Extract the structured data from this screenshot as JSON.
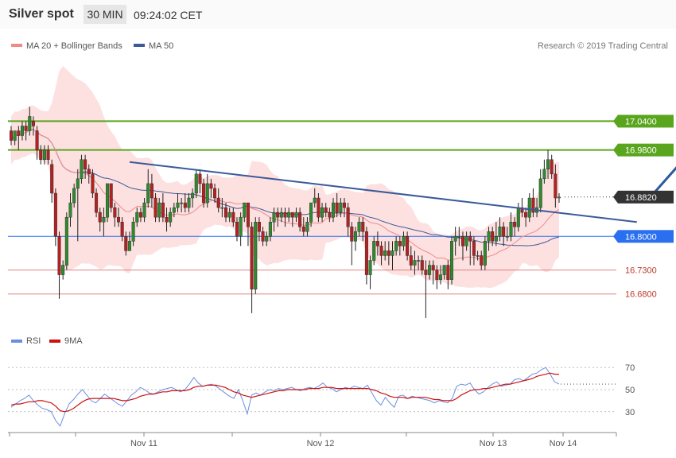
{
  "header": {
    "title": "Silver spot",
    "timeframe": "30 MIN",
    "time": "09:24:02 CET"
  },
  "price_legend": {
    "ma_bb_label": "MA 20 + Bollinger Bands",
    "ma50_label": "MA 50",
    "copyright": "Research © 2019 Trading Central",
    "colors": {
      "ma_bb": "#f08a8a",
      "ma50": "#3a5a9a",
      "band_fill": "#fde0e0",
      "green": "#5aa51e",
      "blue": "#2a6ff0",
      "dark": "#333333",
      "red": "#c0392b"
    }
  },
  "rsi_legend": {
    "rsi_label": "RSI",
    "ma9_label": "9MA",
    "colors": {
      "rsi": "#6b8ee0",
      "ma9": "#cc1111"
    }
  },
  "chart_data": [
    {
      "type": "candlestick",
      "title": "Silver spot",
      "x_ticks": [
        "Nov 11",
        "Nov 12",
        "Nov 13",
        "Nov 14"
      ],
      "ylim": [
        16.61,
        17.16
      ],
      "levels": [
        {
          "label": "17.0400",
          "value": 17.04,
          "style": "resistance"
        },
        {
          "label": "16.9800",
          "value": 16.98,
          "style": "resistance"
        },
        {
          "label": "16.8820",
          "value": 16.882,
          "style": "last-price"
        },
        {
          "label": "16.8000",
          "value": 16.8,
          "style": "pivot"
        },
        {
          "label": "16.7300",
          "value": 16.73,
          "style": "support"
        },
        {
          "label": "16.6800",
          "value": 16.68,
          "style": "support"
        }
      ],
      "trendline": {
        "from": [
          32,
          16.955
        ],
        "to": [
          169,
          16.83
        ]
      },
      "arrow": {
        "from": [
          173,
          16.885
        ],
        "to": [
          190,
          17.035
        ]
      },
      "candles": [
        [
          17.02,
          17.0,
          17.03,
          16.99
        ],
        [
          17.0,
          17.02,
          17.02,
          16.99
        ],
        [
          17.02,
          17.01,
          17.03,
          16.98
        ],
        [
          17.01,
          17.03,
          17.04,
          17.0
        ],
        [
          17.03,
          17.02,
          17.04,
          17.0
        ],
        [
          17.02,
          17.05,
          17.07,
          17.01
        ],
        [
          17.04,
          17.03,
          17.05,
          17.01
        ],
        [
          17.02,
          16.98,
          17.03,
          16.96
        ],
        [
          16.98,
          16.96,
          16.99,
          16.95
        ],
        [
          16.96,
          16.98,
          16.99,
          16.95
        ],
        [
          16.98,
          16.96,
          16.99,
          16.95
        ],
        [
          16.95,
          16.89,
          16.96,
          16.87
        ],
        [
          16.89,
          16.8,
          16.9,
          16.78
        ],
        [
          16.8,
          16.72,
          16.81,
          16.67
        ],
        [
          16.72,
          16.74,
          16.75,
          16.71
        ],
        [
          16.74,
          16.84,
          16.85,
          16.73
        ],
        [
          16.84,
          16.87,
          16.89,
          16.82
        ],
        [
          16.87,
          16.9,
          16.91,
          16.86
        ],
        [
          16.9,
          16.92,
          16.94,
          16.79
        ],
        [
          16.92,
          16.96,
          16.97,
          16.91
        ],
        [
          16.96,
          16.94,
          16.97,
          16.92
        ],
        [
          16.94,
          16.93,
          16.95,
          16.91
        ],
        [
          16.93,
          16.89,
          16.94,
          16.88
        ],
        [
          16.89,
          16.85,
          16.9,
          16.84
        ],
        [
          16.85,
          16.83,
          16.86,
          16.81
        ],
        [
          16.83,
          16.84,
          16.86,
          16.8
        ],
        [
          16.84,
          16.91,
          16.91,
          16.83
        ],
        [
          16.91,
          16.86,
          16.91,
          16.85
        ],
        [
          16.86,
          16.84,
          16.87,
          16.82
        ],
        [
          16.84,
          16.83,
          16.86,
          16.82
        ],
        [
          16.83,
          16.8,
          16.84,
          16.79
        ],
        [
          16.8,
          16.77,
          16.81,
          16.76
        ],
        [
          16.77,
          16.79,
          16.81,
          16.77
        ],
        [
          16.79,
          16.83,
          16.84,
          16.78
        ],
        [
          16.83,
          16.85,
          16.86,
          16.82
        ],
        [
          16.85,
          16.84,
          16.86,
          16.83
        ],
        [
          16.84,
          16.87,
          16.88,
          16.83
        ],
        [
          16.87,
          16.91,
          16.94,
          16.86
        ],
        [
          16.91,
          16.88,
          16.93,
          16.86
        ],
        [
          16.88,
          16.84,
          16.89,
          16.83
        ],
        [
          16.84,
          16.87,
          16.88,
          16.83
        ],
        [
          16.87,
          16.84,
          16.89,
          16.83
        ],
        [
          16.84,
          16.83,
          16.86,
          16.81
        ],
        [
          16.83,
          16.85,
          16.86,
          16.82
        ],
        [
          16.85,
          16.86,
          16.87,
          16.84
        ],
        [
          16.86,
          16.87,
          16.89,
          16.85
        ],
        [
          16.87,
          16.87,
          16.88,
          16.85
        ],
        [
          16.87,
          16.86,
          16.89,
          16.85
        ],
        [
          16.86,
          16.88,
          16.89,
          16.85
        ],
        [
          16.88,
          16.89,
          16.9,
          16.86
        ],
        [
          16.89,
          16.93,
          16.94,
          16.88
        ],
        [
          16.93,
          16.91,
          16.94,
          16.89
        ],
        [
          16.91,
          16.87,
          16.92,
          16.86
        ],
        [
          16.87,
          16.91,
          16.93,
          16.86
        ],
        [
          16.91,
          16.9,
          16.92,
          16.88
        ],
        [
          16.9,
          16.88,
          16.91,
          16.87
        ],
        [
          16.88,
          16.86,
          16.9,
          16.85
        ],
        [
          16.86,
          16.86,
          16.88,
          16.84
        ],
        [
          16.86,
          16.84,
          16.87,
          16.83
        ],
        [
          16.84,
          16.85,
          16.86,
          16.83
        ],
        [
          16.85,
          16.83,
          16.86,
          16.82
        ],
        [
          16.83,
          16.8,
          16.84,
          16.79
        ],
        [
          16.8,
          16.84,
          16.85,
          16.78
        ],
        [
          16.84,
          16.87,
          16.87,
          16.83
        ],
        [
          16.87,
          16.82,
          16.87,
          16.78
        ],
        [
          16.82,
          16.69,
          16.83,
          16.64
        ],
        [
          16.69,
          16.83,
          16.84,
          16.68
        ],
        [
          16.83,
          16.81,
          16.84,
          16.79
        ],
        [
          16.81,
          16.79,
          16.82,
          16.78
        ],
        [
          16.79,
          16.8,
          16.81,
          16.78
        ],
        [
          16.8,
          16.83,
          16.84,
          16.79
        ],
        [
          16.83,
          16.85,
          16.86,
          16.81
        ],
        [
          16.85,
          16.84,
          16.86,
          16.82
        ],
        [
          16.84,
          16.85,
          16.86,
          16.83
        ],
        [
          16.85,
          16.84,
          16.86,
          16.82
        ],
        [
          16.84,
          16.85,
          16.86,
          16.83
        ],
        [
          16.85,
          16.84,
          16.85,
          16.82
        ],
        [
          16.84,
          16.85,
          16.86,
          16.83
        ],
        [
          16.85,
          16.82,
          16.86,
          16.81
        ],
        [
          16.82,
          16.81,
          16.84,
          16.8
        ],
        [
          16.81,
          16.83,
          16.84,
          16.8
        ],
        [
          16.83,
          16.87,
          16.87,
          16.82
        ],
        [
          16.87,
          16.88,
          16.9,
          16.86
        ],
        [
          16.88,
          16.84,
          16.89,
          16.83
        ],
        [
          16.84,
          16.86,
          16.87,
          16.83
        ],
        [
          16.86,
          16.85,
          16.87,
          16.84
        ],
        [
          16.85,
          16.84,
          16.86,
          16.83
        ],
        [
          16.84,
          16.87,
          16.88,
          16.83
        ],
        [
          16.87,
          16.85,
          16.89,
          16.84
        ],
        [
          16.85,
          16.87,
          16.88,
          16.84
        ],
        [
          16.87,
          16.86,
          16.88,
          16.84
        ],
        [
          16.86,
          16.82,
          16.87,
          16.8
        ],
        [
          16.82,
          16.79,
          16.83,
          16.74
        ],
        [
          16.79,
          16.81,
          16.82,
          16.77
        ],
        [
          16.81,
          16.83,
          16.84,
          16.8
        ],
        [
          16.83,
          16.81,
          16.84,
          16.79
        ],
        [
          16.81,
          16.72,
          16.82,
          16.7
        ],
        [
          16.72,
          16.75,
          16.76,
          16.69
        ],
        [
          16.75,
          16.79,
          16.8,
          16.74
        ],
        [
          16.79,
          16.78,
          16.81,
          16.76
        ],
        [
          16.78,
          16.76,
          16.79,
          16.74
        ],
        [
          16.76,
          16.77,
          16.79,
          16.75
        ],
        [
          16.77,
          16.76,
          16.79,
          16.74
        ],
        [
          16.76,
          16.77,
          16.79,
          16.73
        ],
        [
          16.77,
          16.79,
          16.8,
          16.76
        ],
        [
          16.79,
          16.78,
          16.8,
          16.76
        ],
        [
          16.78,
          16.8,
          16.81,
          16.77
        ],
        [
          16.8,
          16.76,
          16.81,
          16.75
        ],
        [
          16.76,
          16.74,
          16.78,
          16.73
        ],
        [
          16.74,
          16.75,
          16.77,
          16.72
        ],
        [
          16.75,
          16.75,
          16.76,
          16.73
        ],
        [
          16.75,
          16.73,
          16.76,
          16.72
        ],
        [
          16.73,
          16.72,
          16.75,
          16.63
        ],
        [
          16.72,
          16.74,
          16.75,
          16.71
        ],
        [
          16.74,
          16.73,
          16.75,
          16.7
        ],
        [
          16.73,
          16.71,
          16.74,
          16.69
        ],
        [
          16.71,
          16.72,
          16.74,
          16.7
        ],
        [
          16.72,
          16.74,
          16.74,
          16.71
        ],
        [
          16.74,
          16.71,
          16.75,
          16.69
        ],
        [
          16.71,
          16.79,
          16.8,
          16.7
        ],
        [
          16.79,
          16.8,
          16.82,
          16.76
        ],
        [
          16.8,
          16.8,
          16.82,
          16.78
        ],
        [
          16.8,
          16.78,
          16.81,
          16.75
        ],
        [
          16.78,
          16.8,
          16.81,
          16.77
        ],
        [
          16.8,
          16.79,
          16.81,
          16.74
        ],
        [
          16.79,
          16.76,
          16.8,
          16.74
        ],
        [
          16.76,
          16.76,
          16.77,
          16.75
        ],
        [
          16.76,
          16.74,
          16.77,
          16.73
        ],
        [
          16.74,
          16.79,
          16.8,
          16.73
        ],
        [
          16.79,
          16.81,
          16.82,
          16.77
        ],
        [
          16.81,
          16.79,
          16.82,
          16.78
        ],
        [
          16.79,
          16.8,
          16.83,
          16.78
        ],
        [
          16.8,
          16.82,
          16.84,
          16.79
        ],
        [
          16.82,
          16.8,
          16.83,
          16.78
        ],
        [
          16.8,
          16.8,
          16.82,
          16.79
        ],
        [
          16.8,
          16.83,
          16.85,
          16.79
        ],
        [
          16.83,
          16.82,
          16.84,
          16.8
        ],
        [
          16.82,
          16.86,
          16.87,
          16.81
        ],
        [
          16.86,
          16.85,
          16.88,
          16.84
        ],
        [
          16.85,
          16.84,
          16.86,
          16.82
        ],
        [
          16.84,
          16.88,
          16.89,
          16.83
        ],
        [
          16.88,
          16.85,
          16.9,
          16.84
        ],
        [
          16.85,
          16.86,
          16.88,
          16.84
        ],
        [
          16.86,
          16.92,
          16.94,
          16.85
        ],
        [
          16.92,
          16.94,
          16.96,
          16.91
        ],
        [
          16.94,
          16.96,
          16.98,
          16.92
        ],
        [
          16.96,
          16.93,
          16.97,
          16.92
        ],
        [
          16.93,
          16.88,
          16.95,
          16.86
        ],
        [
          16.88,
          16.882,
          16.89,
          16.87
        ]
      ]
    },
    {
      "type": "line",
      "title": "RSI",
      "x_ticks": [
        "Nov 11",
        "Nov 12",
        "Nov 13",
        "Nov 14"
      ],
      "y_ticks": [
        30,
        50,
        70
      ],
      "ylim": [
        14,
        86
      ],
      "series": [
        {
          "name": "RSI",
          "values": [
            34,
            37,
            40,
            42,
            45,
            40,
            36,
            33,
            32,
            30,
            22,
            17,
            28,
            37,
            41,
            46,
            50,
            45,
            40,
            38,
            42,
            46,
            43,
            40,
            37,
            35,
            40,
            45,
            48,
            52,
            50,
            47,
            46,
            48,
            50,
            51,
            52,
            50,
            48,
            50,
            55,
            61,
            56,
            53,
            54,
            55,
            53,
            50,
            47,
            44,
            42,
            50,
            40,
            28,
            45,
            47,
            45,
            48,
            50,
            49,
            51,
            50,
            51,
            52,
            50,
            49,
            51,
            52,
            51,
            53,
            56,
            52,
            51,
            48,
            50,
            52,
            51,
            53,
            52,
            51,
            54,
            47,
            40,
            36,
            43,
            38,
            34,
            44,
            45,
            42,
            44,
            43,
            42,
            41,
            40,
            38,
            40,
            39,
            38,
            42,
            53,
            55,
            54,
            56,
            50,
            46,
            48,
            52,
            55,
            57,
            53,
            54,
            55,
            59,
            60,
            58,
            61,
            64,
            65,
            68,
            70,
            64,
            57,
            55
          ]
        },
        {
          "name": "9MA",
          "values": [
            36,
            37,
            37,
            38,
            39,
            39,
            40,
            40,
            39,
            38,
            35,
            31,
            30,
            31,
            33,
            36,
            39,
            41,
            42,
            42,
            42,
            42,
            42,
            42,
            41,
            40,
            40,
            41,
            42,
            44,
            45,
            46,
            46,
            47,
            48,
            48,
            49,
            49,
            49,
            49,
            50,
            52,
            53,
            53,
            54,
            54,
            54,
            53,
            52,
            50,
            48,
            47,
            45,
            44,
            43,
            44,
            45,
            46,
            47,
            48,
            49,
            49,
            50,
            50,
            50,
            50,
            50,
            51,
            51,
            51,
            52,
            52,
            52,
            51,
            51,
            51,
            51,
            51,
            51,
            51,
            51,
            50,
            49,
            47,
            46,
            44,
            43,
            43,
            43,
            42,
            43,
            43,
            43,
            43,
            42,
            41,
            41,
            40,
            40,
            40,
            42,
            45,
            47,
            49,
            50,
            50,
            51,
            51,
            52,
            53,
            54,
            55,
            55,
            56,
            57,
            58,
            59,
            60,
            62,
            63,
            64,
            65,
            64,
            64
          ]
        }
      ]
    }
  ]
}
